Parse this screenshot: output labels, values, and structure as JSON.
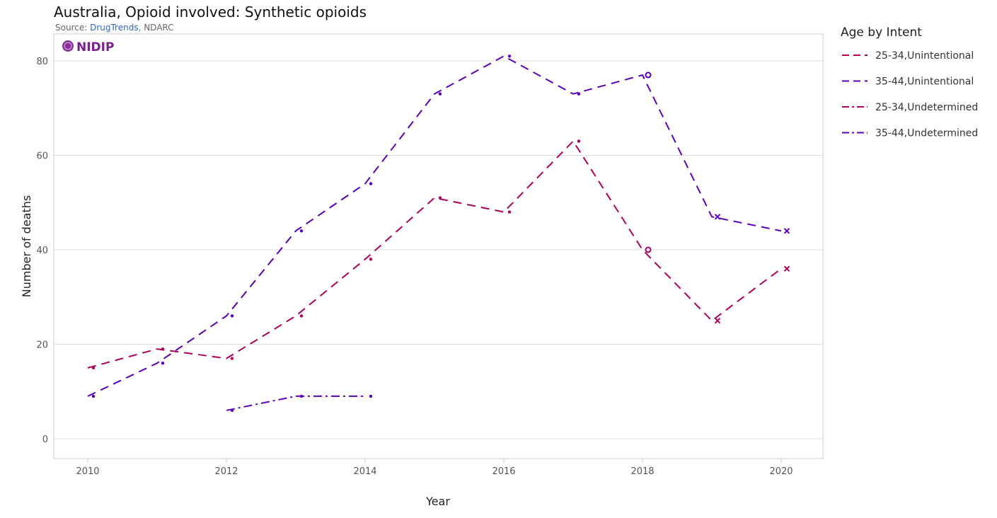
{
  "chart_data": {
    "type": "line",
    "title": "Australia, Opioid involved: Synthetic opioids",
    "source_prefix": "Source: ",
    "source_link": "DrugTrends",
    "source_suffix": ", NDARC",
    "logo_text": "NIDIP",
    "xlabel": "Year",
    "ylabel": "Number of deaths",
    "xlim": [
      2009.5,
      2020.6
    ],
    "ylim": [
      -4,
      86
    ],
    "xticks": [
      2010,
      2012,
      2014,
      2016,
      2018,
      2020
    ],
    "yticks": [
      0,
      20,
      40,
      60,
      80
    ],
    "grid": true,
    "legend_title": "Age by Intent",
    "legend_position": "right",
    "x": [
      2010,
      2011,
      2012,
      2013,
      2014,
      2015,
      2016,
      2017,
      2018,
      2019,
      2020
    ],
    "series": [
      {
        "name": "25-34,Unintentional",
        "color": "#b0005a",
        "dash": "dash",
        "values": [
          15,
          19,
          17,
          26,
          38,
          51,
          48,
          63,
          40,
          25,
          36
        ]
      },
      {
        "name": "35-44,Unintentional",
        "color": "#5a00c0",
        "dash": "dash",
        "values": [
          9,
          16,
          26,
          44,
          54,
          73,
          81,
          73,
          77,
          47,
          44
        ]
      },
      {
        "name": "25-34,Undetermined",
        "color": "#b0005a",
        "dash": "dashdot",
        "values": [
          null,
          null,
          null,
          null,
          null,
          null,
          null,
          null,
          null,
          null,
          null
        ]
      },
      {
        "name": "35-44,Undetermined",
        "color": "#5a00c0",
        "dash": "dashdot",
        "values": [
          null,
          null,
          6,
          9,
          9,
          null,
          null,
          null,
          null,
          null,
          null
        ]
      }
    ],
    "marker_by_year": {
      "2018": "circle",
      "2019": "x",
      "2020": "x"
    }
  }
}
